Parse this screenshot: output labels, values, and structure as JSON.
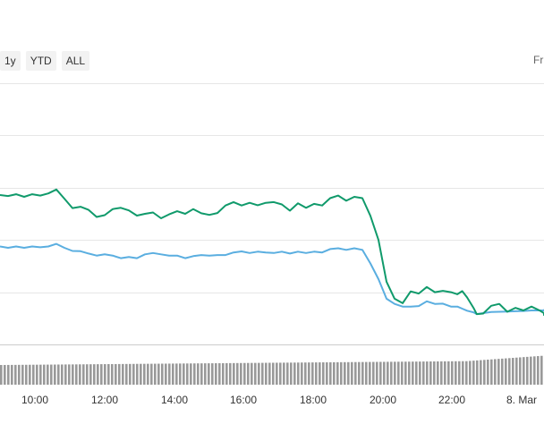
{
  "range_selector": {
    "buttons": [
      "1y",
      "YTD",
      "ALL"
    ],
    "from_label": "Fr"
  },
  "colors": {
    "series_1": "#109a6b",
    "series_2": "#5aaee0",
    "volume": "#999999",
    "grid": "#e6e6e6"
  },
  "chart_data": {
    "type": "line",
    "title": "",
    "xlabel": "",
    "ylabel": "",
    "x_tick_labels": [
      "10:00",
      "12:00",
      "14:00",
      "16:00",
      "18:00",
      "20:00",
      "22:00",
      "8. Mar"
    ],
    "grid": true,
    "series": [
      {
        "x": [
          0,
          0.25,
          0.5,
          0.75,
          1,
          1.25,
          1.5,
          1.75,
          2,
          2.25,
          2.5,
          2.75,
          3,
          3.25,
          3.5,
          3.75,
          4,
          4.25,
          4.5,
          4.75,
          5,
          5.25,
          5.5,
          5.75,
          6,
          6.25,
          6.5,
          6.75,
          7,
          7.25,
          7.5,
          7.75,
          8,
          8.25,
          8.5,
          8.75,
          9,
          9.25,
          9.5,
          9.75,
          10,
          10.25,
          10.5,
          10.75,
          11,
          11.25,
          11.5,
          11.75,
          12,
          12.25,
          12.5,
          12.75,
          13,
          13.25,
          13.5,
          13.75,
          14,
          14.2,
          14.35,
          14.5,
          14.7,
          14.8,
          15,
          15.25,
          15.5,
          15.75,
          16,
          16.25,
          16.5,
          16.75,
          17,
          17.25,
          17.5
        ],
        "values": [
          57.2,
          56.8,
          57.5,
          56.5,
          57.5,
          57.0,
          57.8,
          59.3,
          55.8,
          52.2,
          52.7,
          51.5,
          48.8,
          49.5,
          51.8,
          52.3,
          51.3,
          49.3,
          50.0,
          50.5,
          48.3,
          49.8,
          51.0,
          50.0,
          51.8,
          50.2,
          49.6,
          50.3,
          53.2,
          54.5,
          53.2,
          54.2,
          53.3,
          54.2,
          54.5,
          53.6,
          51.2,
          54.0,
          52.3,
          53.8,
          53.2,
          56.0,
          57.0,
          55.0,
          56.5,
          56.0,
          49.2,
          40.0,
          24.0,
          17.5,
          15.8,
          20.3,
          19.5,
          22.0,
          20.0,
          20.5,
          20.0,
          19.2,
          20.4,
          18.0,
          14.0,
          11.6,
          11.8,
          14.8,
          15.5,
          12.5,
          14.0,
          13.0,
          14.5,
          13.0,
          12.0,
          11.5,
          11.0
        ]
      },
      {
        "x": [
          0,
          0.25,
          0.5,
          0.75,
          1,
          1.25,
          1.5,
          1.75,
          2,
          2.25,
          2.5,
          2.75,
          3,
          3.25,
          3.5,
          3.75,
          4,
          4.25,
          4.5,
          4.75,
          5,
          5.25,
          5.5,
          5.75,
          6,
          6.25,
          6.5,
          6.75,
          7,
          7.25,
          7.5,
          7.75,
          8,
          8.25,
          8.5,
          8.75,
          9,
          9.25,
          9.5,
          9.75,
          10,
          10.25,
          10.5,
          10.75,
          11,
          11.25,
          11.5,
          11.75,
          12,
          12.25,
          12.5,
          12.75,
          13,
          13.25,
          13.5,
          13.75,
          14,
          14.2,
          14.35,
          14.5,
          14.7,
          14.8,
          15,
          15.25,
          15.5,
          15.75,
          16,
          16.25,
          16.5,
          16.75,
          17,
          17.25,
          17.5
        ],
        "values": [
          37.5,
          37.0,
          37.5,
          37.0,
          37.5,
          37.2,
          37.5,
          38.5,
          37.0,
          35.8,
          35.7,
          34.8,
          34.0,
          34.5,
          34.0,
          33.0,
          33.5,
          33.0,
          34.5,
          35.0,
          34.5,
          34.0,
          34.0,
          33.0,
          33.8,
          34.2,
          34.0,
          34.2,
          34.2,
          35.2,
          35.6,
          35.0,
          35.5,
          35.2,
          35.0,
          35.5,
          34.8,
          35.5,
          35.0,
          35.5,
          35.2,
          36.5,
          36.8,
          36.2,
          36.8,
          36.2,
          31.0,
          25.0,
          17.5,
          15.5,
          14.5,
          14.5,
          14.7,
          16.5,
          15.5,
          15.6,
          14.5,
          14.5,
          13.7,
          12.9,
          12.3,
          11.6,
          12.0,
          12.4,
          12.5,
          12.6,
          12.7,
          12.8,
          13.0,
          13.0,
          13.0,
          13.2,
          13.0
        ]
      }
    ]
  }
}
